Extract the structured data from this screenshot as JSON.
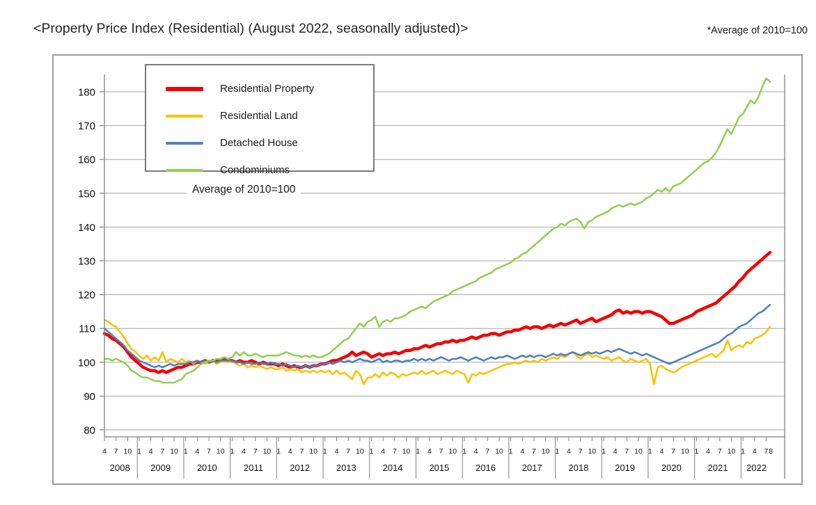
{
  "page": {
    "title": "<Property Price Index (Residential) (August 2022, seasonally adjusted)>",
    "note": "*Average of 2010=100"
  },
  "chart_data": {
    "type": "line",
    "title": "Property Price Index (Residential) (August 2022, seasonally adjusted)",
    "inner_label": "Average of 2010=100",
    "grid": true,
    "legend_position": "top-left",
    "ylim": [
      80,
      185
    ],
    "yticks": [
      80,
      90,
      100,
      110,
      120,
      130,
      140,
      150,
      160,
      170,
      180
    ],
    "x_axis": {
      "start": "2008-04",
      "end": "2022-08",
      "labeled_months": [
        1,
        4,
        7,
        10
      ],
      "final_month_label": "8",
      "years": [
        "2008",
        "2009",
        "2010",
        "2011",
        "2012",
        "2013",
        "2014",
        "2015",
        "2016",
        "2017",
        "2018",
        "2019",
        "2020",
        "2021",
        "2022"
      ]
    },
    "series": [
      {
        "name": "Residential Property",
        "color": "#f40000",
        "width": 4.5,
        "values": [
          108.5,
          108,
          107,
          106.5,
          105.5,
          104.5,
          103,
          101.5,
          100.5,
          99.5,
          98.5,
          98,
          97.5,
          97.5,
          97,
          97.5,
          97,
          97.5,
          98,
          98.5,
          98.5,
          99,
          99.5,
          99.5,
          100,
          100,
          100.5,
          100,
          100.5,
          100.5,
          100.5,
          101,
          100.5,
          100.5,
          100,
          100.5,
          100,
          100,
          100.5,
          100,
          99.5,
          100,
          99.5,
          99.5,
          99.5,
          99,
          99.5,
          99,
          98.5,
          99,
          98.5,
          98.5,
          99,
          98.5,
          99,
          99,
          99.5,
          99.5,
          100,
          100.5,
          100.5,
          101,
          101.5,
          102,
          103,
          102,
          102.5,
          103,
          102.5,
          101.5,
          102,
          102.5,
          102,
          102.5,
          102.5,
          103,
          102.5,
          103,
          103.5,
          103.5,
          104,
          104,
          104.5,
          105,
          104.5,
          105,
          105.5,
          105.5,
          106,
          106,
          106.5,
          106,
          106.5,
          106.5,
          107,
          107.5,
          107,
          107.5,
          108,
          108,
          108.5,
          108.5,
          108,
          108.5,
          109,
          109,
          109.5,
          109.5,
          110,
          110.5,
          110,
          110.5,
          110.5,
          110,
          110.5,
          111,
          110.5,
          111,
          111.5,
          111,
          111.5,
          112,
          112.5,
          111.5,
          112,
          112.5,
          113,
          112,
          112.5,
          113,
          113.5,
          114,
          115,
          115.5,
          114.5,
          115,
          114.5,
          115,
          115,
          114.5,
          115,
          115,
          114.5,
          114,
          113.5,
          112.5,
          111.5,
          111.5,
          112,
          112.5,
          113,
          113.5,
          114,
          115,
          115.5,
          116,
          116.5,
          117,
          117.5,
          118.5,
          119.5,
          120.5,
          121.5,
          122.5,
          124,
          125,
          126.5,
          127.5,
          128.5,
          129.5,
          130.5,
          131.5,
          132.5
        ]
      },
      {
        "name": "Residential Land",
        "color": "#ffc000",
        "width": 2.6,
        "values": [
          112.5,
          112,
          111,
          110.5,
          109,
          107.5,
          105.5,
          104,
          103,
          102,
          101,
          102,
          100.5,
          101.5,
          100.5,
          103,
          100,
          101,
          100.5,
          100,
          101,
          100,
          100.5,
          99.5,
          100.5,
          100,
          99.5,
          100,
          100.5,
          99.5,
          100,
          100.5,
          100,
          100.5,
          99.5,
          99,
          99.5,
          98.5,
          99,
          98.5,
          99,
          98.5,
          98,
          98.5,
          98,
          98,
          98.5,
          97.5,
          98,
          97.5,
          98,
          97,
          97.5,
          97,
          97.5,
          97,
          97.5,
          97,
          97.5,
          96.5,
          97.5,
          96.5,
          97,
          96,
          95,
          97.5,
          96.5,
          93.5,
          95.5,
          95.5,
          96.5,
          95.5,
          97,
          96,
          97,
          96.5,
          95.5,
          96.5,
          96,
          96.5,
          97,
          96.5,
          97.5,
          96.5,
          97,
          97.5,
          96.5,
          97,
          97.5,
          97,
          96.5,
          97.5,
          97,
          96.5,
          94,
          96.5,
          96,
          97,
          96.5,
          97,
          97.5,
          98,
          98.5,
          99,
          99.5,
          99.5,
          100,
          99.5,
          100,
          100.5,
          100,
          100.5,
          100,
          101,
          100.5,
          101,
          101.5,
          101,
          102,
          101.5,
          102.5,
          103,
          102,
          101,
          102,
          102.5,
          101.5,
          102,
          101.5,
          101,
          101.5,
          100.5,
          101,
          101.5,
          100.5,
          100,
          101,
          100.5,
          100,
          100.5,
          101,
          99.5,
          93.5,
          98.5,
          99,
          98,
          97.5,
          97,
          97.5,
          98.5,
          99,
          99.5,
          100,
          100.5,
          101,
          101.5,
          102,
          102.5,
          101.5,
          102.5,
          103.5,
          106.5,
          103.5,
          104.5,
          105,
          104.5,
          106,
          105.5,
          107,
          107.5,
          108,
          109,
          110.5
        ]
      },
      {
        "name": "Detached House",
        "color": "#4f81bd",
        "width": 2.6,
        "values": [
          110,
          109,
          108,
          107,
          106,
          105,
          103.5,
          102.5,
          101.5,
          100.5,
          100,
          99.5,
          99,
          98.5,
          99,
          98.5,
          99,
          99.5,
          99,
          99.5,
          99.5,
          99.5,
          100,
          100,
          100.5,
          100,
          100.5,
          100,
          100.5,
          100,
          100.5,
          100.5,
          100.5,
          100.5,
          100,
          100,
          99.5,
          100,
          99.5,
          99.5,
          100,
          99.5,
          99.5,
          100,
          99.5,
          99.5,
          99,
          99.5,
          99,
          98.5,
          99,
          98.5,
          99,
          98.5,
          99,
          99,
          99.5,
          99.5,
          100,
          99.5,
          100,
          100.5,
          100,
          100.5,
          100,
          100.5,
          101,
          100.5,
          100.5,
          100,
          100.5,
          101,
          100,
          100.5,
          100,
          100.5,
          100.5,
          100,
          100.5,
          100.5,
          101,
          100.5,
          101,
          100.5,
          101,
          100.5,
          101,
          101.5,
          101,
          100.5,
          101,
          101,
          101.5,
          101,
          100.5,
          101,
          101.5,
          101,
          100.5,
          101,
          101.5,
          101,
          101.5,
          101.5,
          102,
          101.5,
          101,
          101.5,
          102,
          101.5,
          102,
          101.5,
          102,
          102,
          101.5,
          102,
          102.5,
          102,
          102.5,
          102,
          102.5,
          103,
          102.5,
          102,
          102.5,
          103,
          102.5,
          103,
          102.5,
          103,
          103.5,
          103,
          103.5,
          104,
          103.5,
          103,
          102.5,
          103,
          102.5,
          102,
          102.5,
          102,
          101.5,
          101,
          100.5,
          100,
          99.5,
          100,
          100.5,
          101,
          101.5,
          102,
          102.5,
          103,
          103.5,
          104,
          104.5,
          105,
          105.5,
          106,
          107,
          108,
          108.5,
          109.5,
          110.5,
          111,
          111.5,
          112.5,
          113.5,
          114.5,
          115,
          116,
          117
        ]
      },
      {
        "name": "Condominiums",
        "color": "#92d050",
        "width": 2.6,
        "values": [
          101,
          101,
          100.5,
          101,
          100.5,
          100,
          99,
          97.5,
          97,
          96,
          95.5,
          95.5,
          95,
          94.5,
          94.5,
          94,
          94,
          94,
          94,
          94.5,
          95,
          96.5,
          97,
          97.5,
          98.5,
          99.5,
          100,
          100.5,
          100.5,
          101,
          101,
          101.5,
          101,
          101.5,
          103,
          102,
          103,
          102,
          102,
          102.5,
          102,
          101.5,
          102,
          102,
          102,
          102,
          102.5,
          103,
          102.5,
          102,
          102,
          101.5,
          102,
          101.5,
          102,
          101.5,
          101.5,
          102,
          102.5,
          103.5,
          104.5,
          105.5,
          106.5,
          107,
          108.5,
          110,
          111.5,
          110.5,
          112,
          112.5,
          113.5,
          110.5,
          112,
          112.5,
          112,
          113,
          113,
          113.5,
          114,
          115,
          115.5,
          116,
          116.5,
          116,
          117,
          118,
          118.5,
          119,
          119.5,
          120,
          121,
          121.5,
          122,
          122.5,
          123,
          123.5,
          124,
          125,
          125.5,
          126,
          126.5,
          127.5,
          128,
          128.5,
          129,
          129.5,
          130.5,
          131,
          132,
          132.5,
          133.5,
          134.5,
          135.5,
          136.5,
          137.5,
          138.5,
          139.5,
          140,
          141,
          140.5,
          141.5,
          142,
          142.5,
          141.5,
          139.5,
          141.5,
          142,
          143,
          143.5,
          144,
          144.5,
          145.5,
          146,
          146.5,
          146,
          146.5,
          147,
          146.5,
          147,
          147.5,
          148.5,
          149,
          150,
          151,
          150.5,
          151.5,
          150.5,
          152,
          152.5,
          153,
          154,
          155,
          156,
          157,
          158,
          159,
          159.5,
          160.5,
          162,
          164,
          166.5,
          169,
          167.5,
          170,
          172.5,
          173.5,
          175.5,
          177.5,
          176.5,
          178.5,
          181.5,
          184,
          183
        ]
      }
    ]
  }
}
